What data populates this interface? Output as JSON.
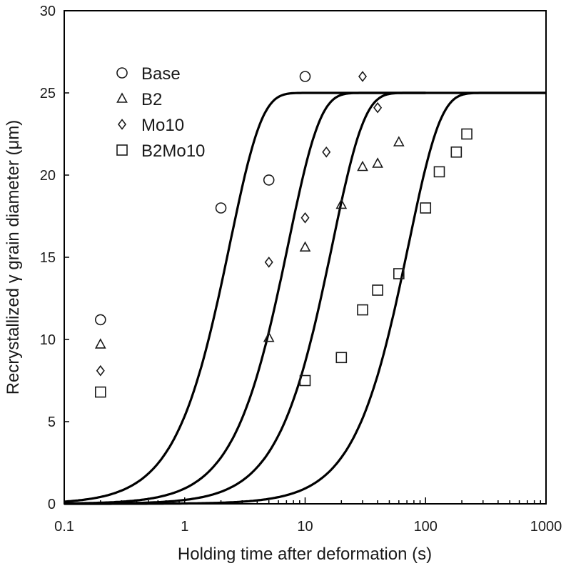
{
  "chart_data": {
    "type": "scatter",
    "title": "",
    "xlabel": "Holding time after deformation (s)",
    "ylabel": "Recrystallized  γ grain diameter  (μm)",
    "x_scale": "log",
    "xlim": [
      0.1,
      1000
    ],
    "ylim": [
      0,
      30
    ],
    "x_tick_labels": [
      "0.1",
      "1",
      "10",
      "100",
      "1000"
    ],
    "y_tick_labels": [
      "0",
      "5",
      "10",
      "15",
      "20",
      "25",
      "30"
    ],
    "grid": false,
    "legend_position": "top-left",
    "series": [
      {
        "name": "Base",
        "marker": "circle",
        "points": [
          [
            0.2,
            11.2
          ],
          [
            2,
            18.0
          ],
          [
            5,
            19.7
          ],
          [
            10,
            26.0
          ]
        ]
      },
      {
        "name": "B2",
        "marker": "triangle",
        "points": [
          [
            0.2,
            9.7
          ],
          [
            5,
            10.1
          ],
          [
            10,
            15.6
          ],
          [
            20,
            18.2
          ],
          [
            30,
            20.5
          ],
          [
            40,
            20.7
          ],
          [
            60,
            22.0
          ]
        ]
      },
      {
        "name": "Mo10",
        "marker": "diamond",
        "points": [
          [
            0.2,
            8.1
          ],
          [
            5,
            14.7
          ],
          [
            10,
            17.4
          ],
          [
            15,
            21.4
          ],
          [
            30,
            26.0
          ],
          [
            40,
            24.1
          ]
        ]
      },
      {
        "name": "B2Mo10",
        "marker": "square",
        "points": [
          [
            0.2,
            6.8
          ],
          [
            10,
            7.5
          ],
          [
            20,
            8.9
          ],
          [
            30,
            11.8
          ],
          [
            40,
            13.0
          ],
          [
            60,
            14.0
          ],
          [
            100,
            18.0
          ],
          [
            130,
            20.2
          ],
          [
            180,
            21.4
          ],
          [
            220,
            22.5
          ]
        ]
      }
    ],
    "fitted_curves": [
      {
        "d_max": 25,
        "t50": 1.9,
        "n": 1.65,
        "x_end": 100
      },
      {
        "d_max": 25,
        "t50": 5.8,
        "n": 1.65,
        "x_end": 100
      },
      {
        "d_max": 25,
        "t50": 13.5,
        "n": 1.65,
        "x_end": 1000
      },
      {
        "d_max": 25,
        "t50": 58,
        "n": 1.65,
        "x_end": 1000
      }
    ]
  }
}
